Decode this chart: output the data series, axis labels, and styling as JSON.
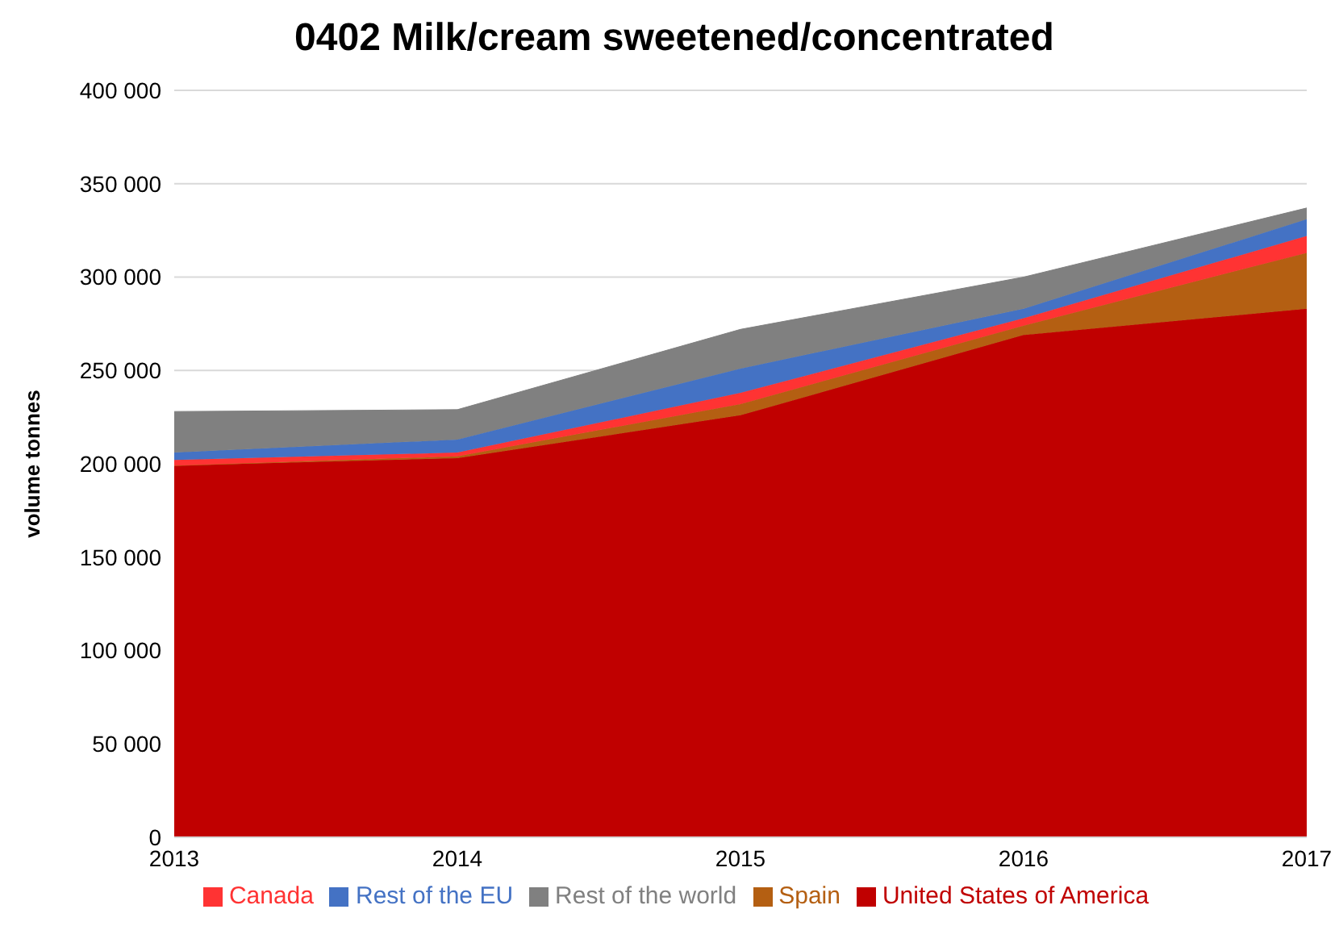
{
  "chart_data": {
    "type": "area",
    "title": "0402 Milk/cream sweetened/concentrated",
    "ylabel": "volume tonnes",
    "x": [
      2013,
      2014,
      2015,
      2016,
      2017
    ],
    "xlim": [
      2013,
      2017
    ],
    "xticks": [
      2013,
      2014,
      2015,
      2016,
      2017
    ],
    "ylim": [
      0,
      400000
    ],
    "yticks": [
      {
        "value": 0,
        "label": "0"
      },
      {
        "value": 50000,
        "label": "50 000"
      },
      {
        "value": 100000,
        "label": "100 000"
      },
      {
        "value": 150000,
        "label": "150 000"
      },
      {
        "value": 200000,
        "label": "200 000"
      },
      {
        "value": 250000,
        "label": "250 000"
      },
      {
        "value": 300000,
        "label": "300 000"
      },
      {
        "value": 350000,
        "label": "350 000"
      },
      {
        "value": 400000,
        "label": "400 000"
      }
    ],
    "stacked": true,
    "grid": "y",
    "legend": "bottom",
    "series": [
      {
        "name": "United States of America",
        "color": "#c00000",
        "values": [
          199000,
          203000,
          226000,
          269000,
          283000
        ]
      },
      {
        "name": "Spain",
        "color": "#b45f12",
        "values": [
          0,
          1000,
          6000,
          5000,
          30000
        ]
      },
      {
        "name": "Canada",
        "color": "#ff3333",
        "values": [
          3000,
          2000,
          6000,
          4000,
          9000
        ]
      },
      {
        "name": "Rest of the EU",
        "color": "#4472c4",
        "values": [
          4000,
          7000,
          13000,
          5000,
          9000
        ]
      },
      {
        "name": "Rest of the world",
        "color": "#808080",
        "values": [
          22000,
          16000,
          21000,
          17000,
          6000
        ]
      }
    ]
  }
}
